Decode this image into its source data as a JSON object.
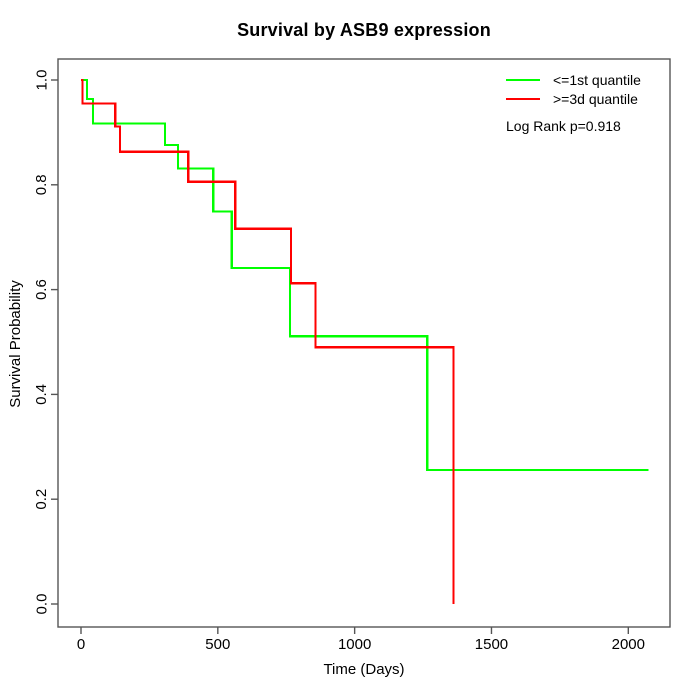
{
  "title": "Survival by ASB9 expression",
  "legend": {
    "items": [
      {
        "label": "<=1st quantile",
        "color": "#00ff00"
      },
      {
        "label": ">=3d quantile",
        "color": "#ff0000"
      }
    ],
    "annotation": "Log Rank p=0.918"
  },
  "chart_data": {
    "type": "line",
    "subtype": "kaplan-meier-step",
    "title": "Survival by ASB9 expression",
    "xlabel": "Time (Days)",
    "ylabel": "Survival Probability",
    "xlim": [
      0,
      2150
    ],
    "ylim": [
      0,
      1
    ],
    "x_ticks": [
      0,
      500,
      1000,
      1500,
      2000
    ],
    "y_ticks": [
      "0.0",
      "0.2",
      "0.4",
      "0.6",
      "0.8",
      "1.0"
    ],
    "grid": false,
    "legend_position": "top-right",
    "log_rank_p": 0.918,
    "frame_color": "#555555",
    "series": [
      {
        "name": "<=1st quantile",
        "color": "#00ff00",
        "steps": [
          [
            0,
            1.0
          ],
          [
            22,
            0.964
          ],
          [
            44,
            0.917
          ],
          [
            307,
            0.876
          ],
          [
            355,
            0.831
          ],
          [
            483,
            0.749
          ],
          [
            551,
            0.641
          ],
          [
            764,
            0.511
          ],
          [
            1265,
            0.256
          ]
        ],
        "end_time": 2073
      },
      {
        "name": ">=3d quantile",
        "color": "#ff0000",
        "steps": [
          [
            0,
            1.0
          ],
          [
            5,
            0.955
          ],
          [
            125,
            0.911
          ],
          [
            143,
            0.863
          ],
          [
            392,
            0.806
          ],
          [
            564,
            0.716
          ],
          [
            767,
            0.612
          ],
          [
            857,
            0.49
          ],
          [
            1361,
            0.0
          ]
        ],
        "end_time": 1361
      }
    ]
  }
}
